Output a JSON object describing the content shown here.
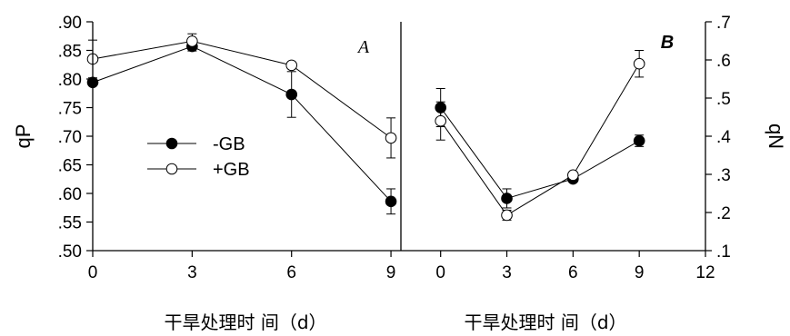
{
  "chart_data": [
    {
      "type": "line",
      "panel_label": "A",
      "xlabel": "干旱处理时 间（d）",
      "ylabel": "qP",
      "x_ticks": [
        "0",
        "3",
        "6",
        "9"
      ],
      "y_ticks": [
        ".50",
        ".55",
        ".60",
        ".65",
        ".70",
        ".75",
        ".80",
        ".85",
        ".90"
      ],
      "xlim": [
        0,
        9.3
      ],
      "ylim": [
        0.5,
        0.9
      ],
      "legend_position": "center-left",
      "series": [
        {
          "name": "-GB",
          "marker": "filled-circle",
          "x": [
            0,
            3,
            6,
            9
          ],
          "y": [
            0.794,
            0.857,
            0.773,
            0.586
          ],
          "err": [
            0.0,
            0.008,
            0.04,
            0.022
          ]
        },
        {
          "name": "+GB",
          "marker": "open-circle",
          "x": [
            0,
            3,
            6,
            9
          ],
          "y": [
            0.835,
            0.866,
            0.824,
            0.697
          ],
          "err": [
            0.033,
            0.013,
            0.0,
            0.035
          ]
        }
      ]
    },
    {
      "type": "line",
      "panel_label": "B",
      "xlabel": "干旱处理时 间（d）",
      "ylabel": "qN",
      "x_ticks": [
        "0",
        "3",
        "6",
        "9",
        "12"
      ],
      "y_ticks": [
        ".1",
        ".2",
        ".3",
        ".4",
        ".5",
        ".6",
        ".7"
      ],
      "xlim": [
        -1.8,
        12
      ],
      "ylim": [
        0.1,
        0.7
      ],
      "y_axis_side": "right",
      "series": [
        {
          "name": "-GB",
          "marker": "filled-circle",
          "x": [
            0,
            3,
            6,
            9
          ],
          "y": [
            0.475,
            0.237,
            0.288,
            0.388
          ],
          "err": [
            0.05,
            0.025,
            0.0,
            0.015
          ]
        },
        {
          "name": "+GB",
          "marker": "open-circle",
          "x": [
            0,
            3,
            6,
            9
          ],
          "y": [
            0.44,
            0.193,
            0.298,
            0.59
          ],
          "err": [
            0.05,
            0.013,
            0.0,
            0.035
          ]
        }
      ]
    }
  ]
}
